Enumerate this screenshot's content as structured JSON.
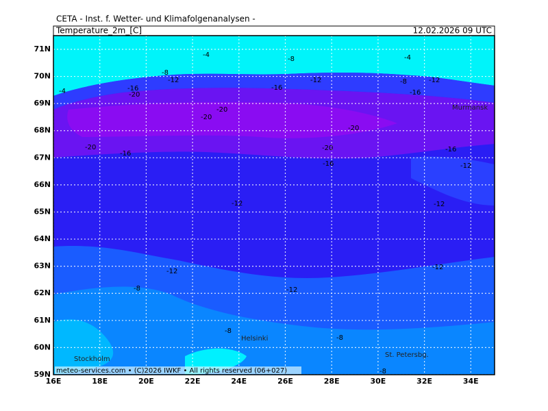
{
  "header": {
    "institute": "CETA - Inst. f. Wetter- und Klimafolgenanalysen -",
    "parameter": "Temperature_2m_[C]",
    "datetime": "12.02.2026  09 UTC"
  },
  "map": {
    "lat_labels": [
      "71N",
      "70N",
      "69N",
      "68N",
      "67N",
      "66N",
      "65N",
      "64N",
      "63N",
      "62N",
      "61N",
      "60N",
      "59N"
    ],
    "lon_labels": [
      "16E",
      "18E",
      "20E",
      "22E",
      "24E",
      "26E",
      "28E",
      "30E",
      "32E",
      "34E"
    ],
    "cities": [
      "Murmansk",
      "Helsinki",
      "Stockholm",
      "St. Petersbg."
    ],
    "contour_labels": [
      "-4",
      "-8",
      "-4",
      "-8",
      "-12",
      "-16",
      "-20",
      "-16",
      "-12",
      "-8",
      "-12",
      "-16",
      "-4",
      "-20",
      "-20",
      "-20",
      "-20",
      "-20",
      "-16",
      "-16",
      "-16",
      "-12",
      "-12",
      "-12",
      "-12",
      "-8",
      "-12",
      "-12",
      "-8",
      "-8",
      "-8"
    ]
  },
  "footer": "meteo-services.com • (C)2026 IWKF • All rights reserved (06+027)"
}
